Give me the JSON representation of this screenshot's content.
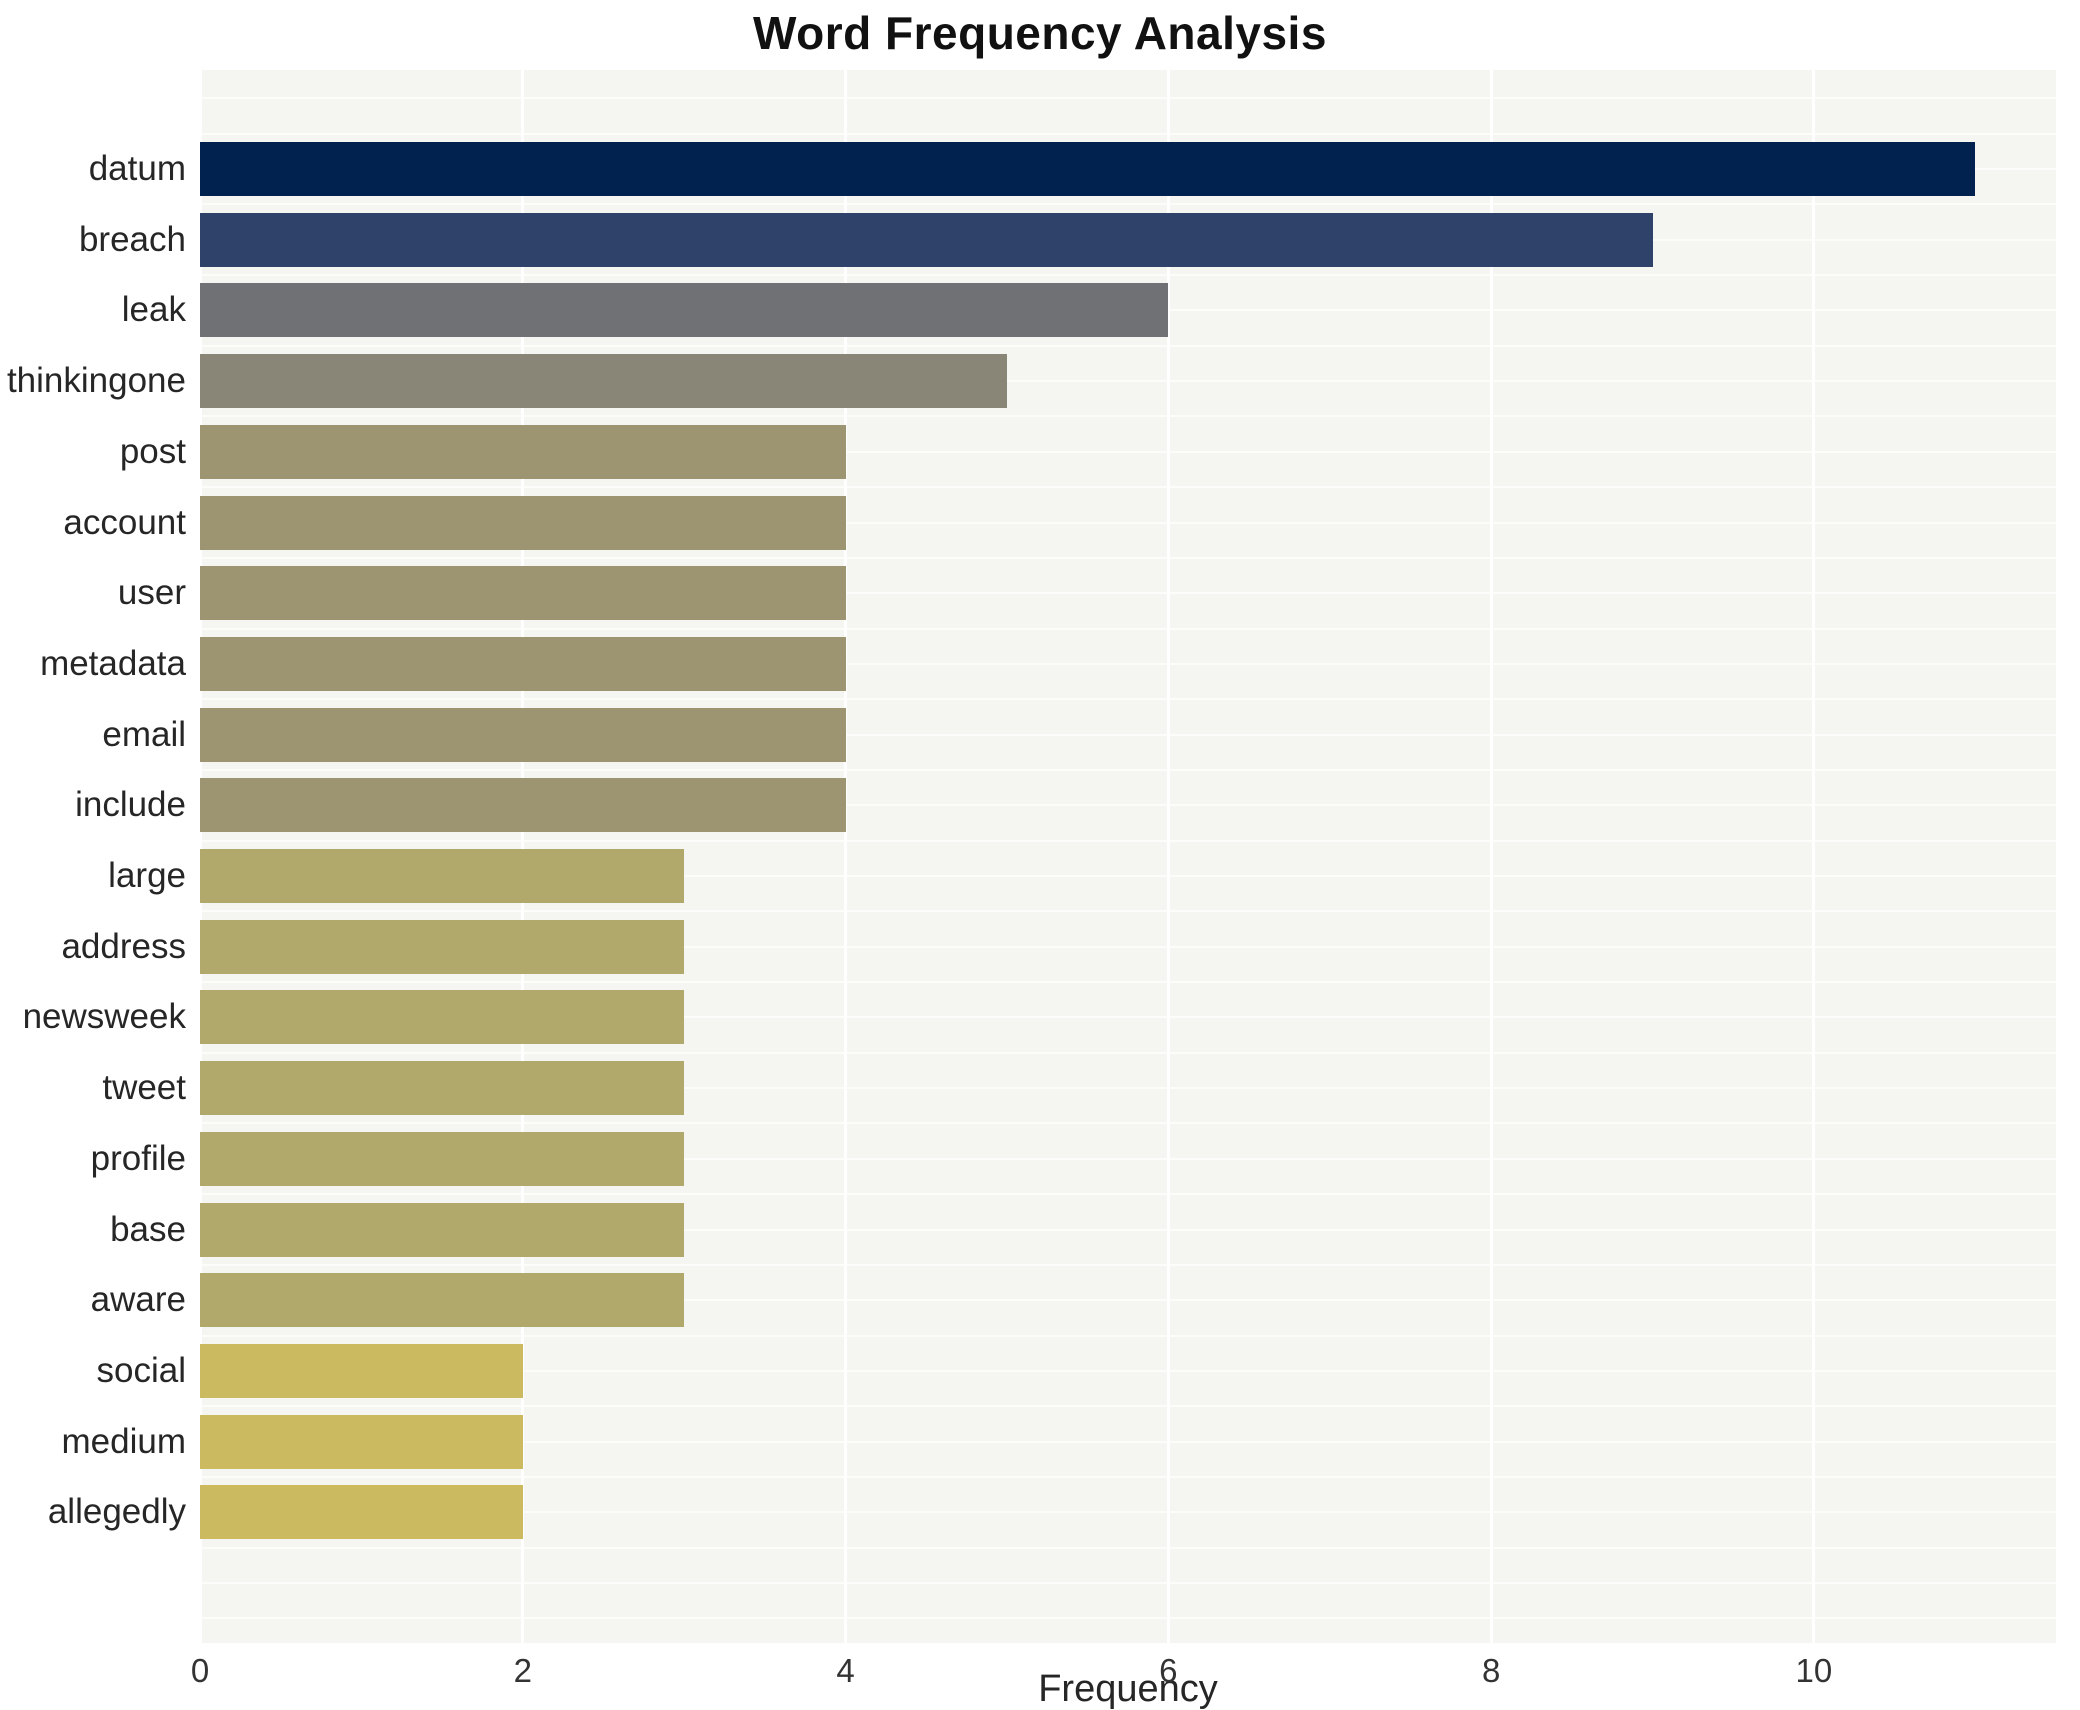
{
  "page": {
    "title": "Word Frequency Analysis"
  },
  "chart_data": {
    "type": "bar",
    "orientation": "horizontal",
    "title": "Word Frequency Analysis",
    "xlabel": "Frequency",
    "ylabel": "",
    "categories": [
      "datum",
      "breach",
      "leak",
      "thinkingone",
      "post",
      "account",
      "user",
      "metadata",
      "email",
      "include",
      "large",
      "address",
      "newsweek",
      "tweet",
      "profile",
      "base",
      "aware",
      "social",
      "medium",
      "allegedly"
    ],
    "values": [
      11,
      9,
      6,
      5,
      4,
      4,
      4,
      4,
      4,
      4,
      3,
      3,
      3,
      3,
      3,
      3,
      3,
      2,
      2,
      2
    ],
    "bar_colors": [
      "#01214e",
      "#2f436a",
      "#6f7175",
      "#898677",
      "#9d9572",
      "#9d9572",
      "#9d9572",
      "#9d9572",
      "#9d9572",
      "#9d9572",
      "#b1a86c",
      "#b1a86c",
      "#b1a86c",
      "#b1a86c",
      "#b1a86c",
      "#b1a86c",
      "#b1a86c",
      "#ccba61",
      "#ccba61",
      "#ccba61"
    ],
    "x_ticks": [
      0,
      2,
      4,
      6,
      8,
      10
    ],
    "xlim": [
      0,
      11.5
    ],
    "grid": "on",
    "legend": "none",
    "colors": {
      "plot_background": "#f5f5f2",
      "grid": "#ffffff",
      "axis_text": "#333333",
      "label_text": "#262626",
      "title_text": "#111111"
    }
  }
}
